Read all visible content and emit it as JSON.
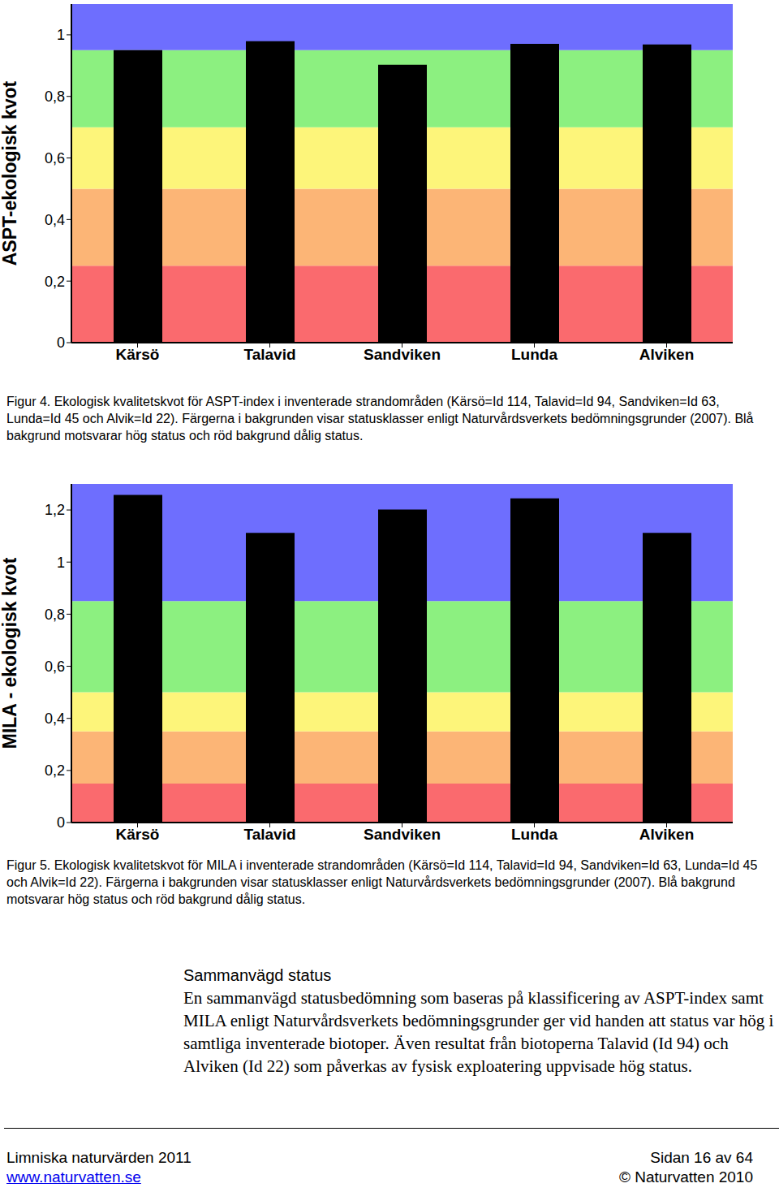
{
  "chart_data": [
    {
      "type": "bar",
      "ylabel": "ASPT-ekologisk kvot",
      "categories": [
        "Kärsö",
        "Talavid",
        "Sandviken",
        "Lunda",
        "Alviken"
      ],
      "values": [
        0.95,
        0.979,
        0.903,
        0.971,
        0.969
      ],
      "color": "#000000",
      "ylim": [
        0,
        1.1
      ],
      "yticks": [
        0,
        {
          "value": 0.2,
          "label": "0,2"
        },
        {
          "value": 0.4,
          "label": "0,4"
        },
        {
          "value": 0.6,
          "label": "0,6"
        },
        {
          "value": 0.8,
          "label": "0,8"
        },
        1
      ],
      "status_classes": [
        {
          "from": 0,
          "to": 0.25,
          "color": "#fa6a6e"
        },
        {
          "from": 0.25,
          "to": 0.5,
          "color": "#fcb576"
        },
        {
          "from": 0.5,
          "to": 0.7,
          "color": "#fdf57a"
        },
        {
          "from": 0.7,
          "to": 0.95,
          "color": "#8cf080"
        },
        {
          "from": 0.95,
          "to": 1.1,
          "color": "#6e6efe"
        }
      ],
      "caption": "Figur 4. Ekologisk kvalitetskvot för ASPT-index i inventerade strandområden (Kärsö=Id 114, Talavid=Id 94, Sandviken=Id 63, Lunda=Id 45 och Alvik=Id 22). Färgerna i bakgrunden visar statusklasser enligt Naturvårdsverkets bedömningsgrunder (2007). Blå bakgrund motsvarar hög status och röd bakgrund dålig status."
    },
    {
      "type": "bar",
      "ylabel": "MILA - ekologisk kvot",
      "categories": [
        "Kärsö",
        "Talavid",
        "Sandviken",
        "Lunda",
        "Alviken"
      ],
      "values": [
        1.258,
        1.112,
        1.202,
        1.245,
        1.112
      ],
      "color": "#000000",
      "ylim": [
        0,
        1.3
      ],
      "yticks": [
        0,
        {
          "value": 0.2,
          "label": "0,2"
        },
        {
          "value": 0.4,
          "label": "0,4"
        },
        {
          "value": 0.6,
          "label": "0,6"
        },
        {
          "value": 0.8,
          "label": "0,8"
        },
        1,
        {
          "value": 1.2,
          "label": "1,2"
        }
      ],
      "status_classes": [
        {
          "from": 0,
          "to": 0.15,
          "color": "#fa6a6e"
        },
        {
          "from": 0.15,
          "to": 0.35,
          "color": "#fcb576"
        },
        {
          "from": 0.35,
          "to": 0.5,
          "color": "#fdf57a"
        },
        {
          "from": 0.5,
          "to": 0.85,
          "color": "#8cf080"
        },
        {
          "from": 0.85,
          "to": 1.3,
          "color": "#6e6efe"
        }
      ],
      "caption": "Figur 5. Ekologisk kvalitetskvot för MILA i inventerade strandområden (Kärsö=Id 114, Talavid=Id 94, Sandviken=Id 63, Lunda=Id 45 och Alvik=Id 22). Färgerna i bakgrunden visar statusklasser enligt Naturvårdsverkets bedömningsgrunder (2007). Blå bakgrund motsvarar hög status och röd bakgrund dålig status."
    }
  ],
  "document": {
    "section": {
      "heading": "Sammanvägd status",
      "text": "En sammanvägd statusbedömning som baseras på klassificering av ASPT-index samt MILA enligt Naturvårdsverkets bedömningsgrunder ger vid handen att status var hög i samtliga inventerade biotoper. Även resultat från biotoperna Talavid (Id 94) och Alviken (Id 22) som påverkas av fysisk exploatering uppvisade hög status."
    },
    "footer": {
      "left": "Limniska naturvärden 2011",
      "right": "Sidan 16 av 64",
      "link": "www.naturvatten.se",
      "copyright": "© Naturvatten 2010"
    }
  }
}
